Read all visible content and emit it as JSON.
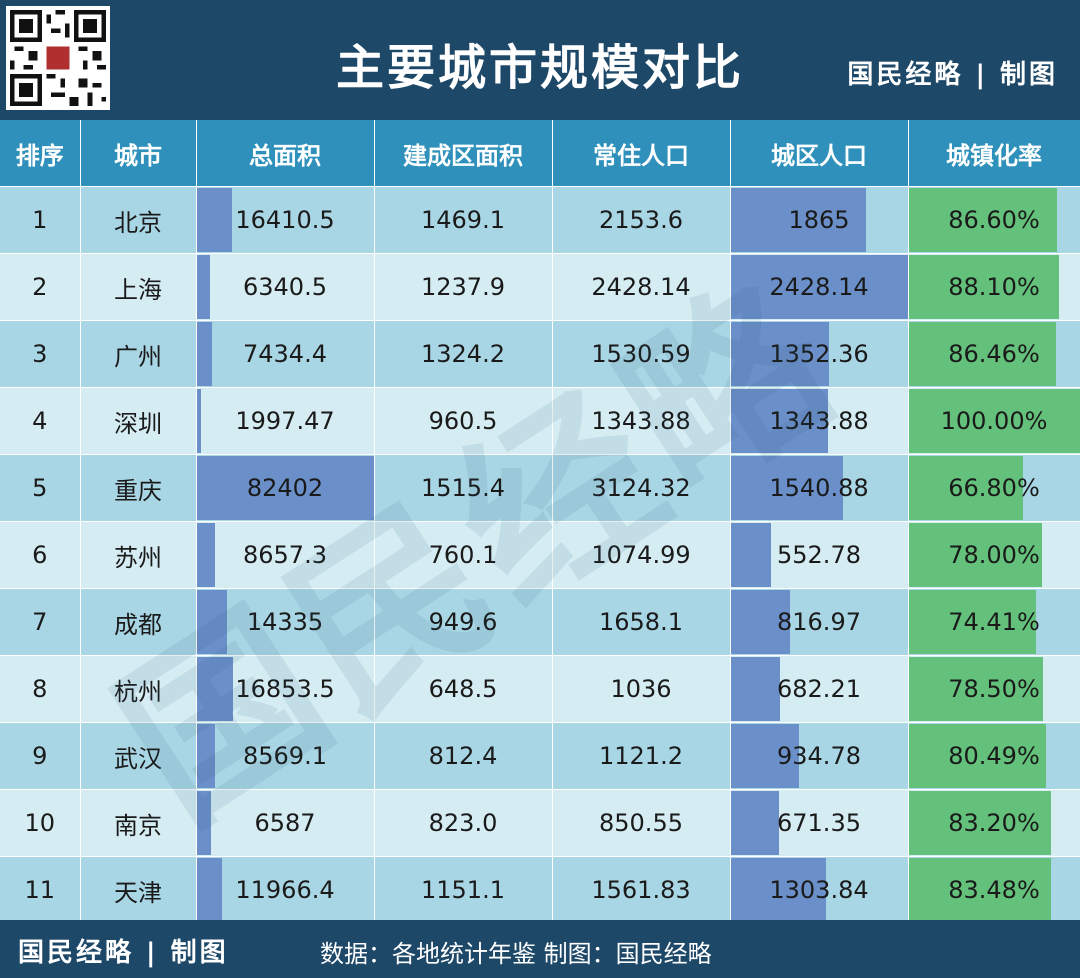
{
  "header": {
    "title": "主要城市规模对比",
    "brand": "国民经略 | 制图"
  },
  "footer": {
    "brand": "国民经略 | 制图",
    "source": "数据：各地统计年鉴  制图：国民经略"
  },
  "watermark": "国民经略",
  "chart_data": {
    "type": "table",
    "columns": [
      "排序",
      "城市",
      "总面积",
      "建成区面积",
      "常住人口",
      "城区人口",
      "城镇化率"
    ],
    "rows": [
      {
        "rank": "1",
        "city": "北京",
        "total_area": "16410.5",
        "built_area": "1469.1",
        "resident_pop": "2153.6",
        "urban_pop": "1865",
        "urbanization": "86.60%"
      },
      {
        "rank": "2",
        "city": "上海",
        "total_area": "6340.5",
        "built_area": "1237.9",
        "resident_pop": "2428.14",
        "urban_pop": "2428.14",
        "urbanization": "88.10%"
      },
      {
        "rank": "3",
        "city": "广州",
        "total_area": "7434.4",
        "built_area": "1324.2",
        "resident_pop": "1530.59",
        "urban_pop": "1352.36",
        "urbanization": "86.46%"
      },
      {
        "rank": "4",
        "city": "深圳",
        "total_area": "1997.47",
        "built_area": "960.5",
        "resident_pop": "1343.88",
        "urban_pop": "1343.88",
        "urbanization": "100.00%"
      },
      {
        "rank": "5",
        "city": "重庆",
        "total_area": "82402",
        "built_area": "1515.4",
        "resident_pop": "3124.32",
        "urban_pop": "1540.88",
        "urbanization": "66.80%"
      },
      {
        "rank": "6",
        "city": "苏州",
        "total_area": "8657.3",
        "built_area": "760.1",
        "resident_pop": "1074.99",
        "urban_pop": "552.78",
        "urbanization": "78.00%"
      },
      {
        "rank": "7",
        "city": "成都",
        "total_area": "14335",
        "built_area": "949.6",
        "resident_pop": "1658.1",
        "urban_pop": "816.97",
        "urbanization": "74.41%"
      },
      {
        "rank": "8",
        "city": "杭州",
        "total_area": "16853.5",
        "built_area": "648.5",
        "resident_pop": "1036",
        "urban_pop": "682.21",
        "urbanization": "78.50%"
      },
      {
        "rank": "9",
        "city": "武汉",
        "total_area": "8569.1",
        "built_area": "812.4",
        "resident_pop": "1121.2",
        "urban_pop": "934.78",
        "urbanization": "80.49%"
      },
      {
        "rank": "10",
        "city": "南京",
        "total_area": "6587",
        "built_area": "823.0",
        "resident_pop": "850.55",
        "urban_pop": "671.35",
        "urbanization": "83.20%"
      },
      {
        "rank": "11",
        "city": "天津",
        "total_area": "11966.4",
        "built_area": "1151.1",
        "resident_pop": "1561.83",
        "urban_pop": "1303.84",
        "urbanization": "83.48%"
      }
    ]
  },
  "colors": {
    "header_bg": "#1d4868",
    "col_header_bg": "#2f91bb",
    "row_odd": "#a9d6e5",
    "row_even": "#d5ecf3",
    "bar_blue": "#6a8fc9",
    "bar_green": "#63c17b"
  }
}
